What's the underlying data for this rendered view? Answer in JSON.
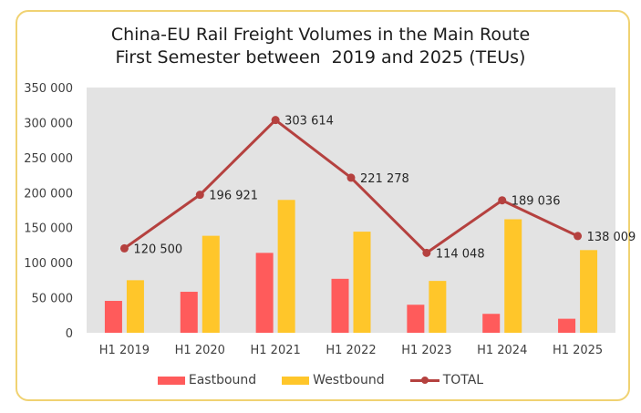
{
  "chart_data": {
    "type": "bar",
    "title": "China-EU Rail Freight Volumes in the Main Route\nFirst Semester between  2019 and 2025 (TEUs)",
    "title_lines": [
      "China-EU Rail Freight Volumes in the Main Route",
      "First Semester between  2019 and 2025 (TEUs)"
    ],
    "xlabel": "",
    "ylabel": "",
    "ylim": [
      0,
      350000
    ],
    "yticks": [
      0,
      50000,
      100000,
      150000,
      200000,
      250000,
      300000,
      350000
    ],
    "ytick_labels": [
      "0",
      "50 000",
      "100 000",
      "150 000",
      "200 000",
      "250 000",
      "300 000",
      "350 000"
    ],
    "grid": false,
    "legend_position": "bottom",
    "categories": [
      "H1 2019",
      "H1 2020",
      "H1 2021",
      "H1 2022",
      "H1 2023",
      "H1 2024",
      "H1 2025"
    ],
    "series": [
      {
        "name": "Eastbound",
        "type": "bar",
        "color": "#ff5b5b",
        "values": [
          45500,
          58500,
          114000,
          77000,
          40000,
          27000,
          20000
        ]
      },
      {
        "name": "Westbound",
        "type": "bar",
        "color": "#ffc62a",
        "values": [
          75000,
          138400,
          189600,
          144300,
          74000,
          162000,
          118000
        ]
      },
      {
        "name": "TOTAL",
        "type": "line",
        "color": "#b5413f",
        "values": [
          120500,
          196921,
          303614,
          221278,
          114048,
          189036,
          138009
        ],
        "data_labels": [
          "120 500",
          "196 921",
          "303 614",
          "221 278",
          "114 048",
          "189 036",
          "138 009"
        ]
      }
    ]
  },
  "colors": {
    "frame_border": "#f0d272",
    "plot_background": "#e3e3e3",
    "eastbound": "#ff5b5b",
    "westbound": "#ffc62a",
    "total": "#b5413f"
  }
}
